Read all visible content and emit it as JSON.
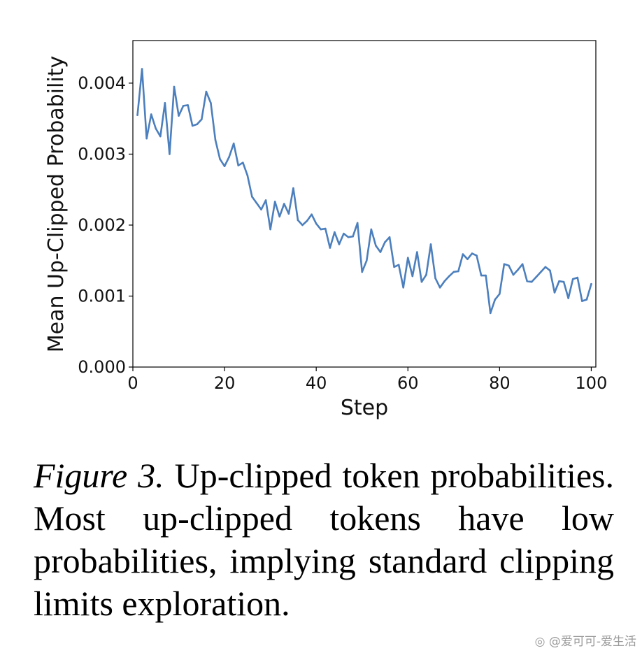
{
  "chart_data": {
    "type": "line",
    "title": "",
    "xlabel": "Step",
    "ylabel": "Mean Up-Clipped Probability",
    "xlim": [
      0,
      101
    ],
    "ylim": [
      0,
      0.0046
    ],
    "xticks": [
      0,
      20,
      40,
      60,
      80,
      100
    ],
    "xtick_labels": [
      "0",
      "20",
      "40",
      "60",
      "80",
      "100"
    ],
    "yticks": [
      0,
      0.001,
      0.002,
      0.003,
      0.004
    ],
    "ytick_labels": [
      "0.000",
      "0.001",
      "0.002",
      "0.003",
      "0.004"
    ],
    "grid": false,
    "line_color": "#4c7fbd",
    "series": [
      {
        "x": [
          1,
          2,
          3,
          4,
          5,
          6,
          7,
          8,
          9,
          10,
          11,
          12,
          13,
          14,
          15,
          16,
          17,
          18,
          19,
          20,
          21,
          22,
          23,
          24,
          25,
          26,
          27,
          28,
          29,
          30,
          31,
          32,
          33,
          34,
          35,
          36,
          37,
          38,
          39,
          40,
          41,
          42,
          43,
          44,
          45,
          46,
          47,
          48,
          49,
          50,
          51,
          52,
          53,
          54,
          55,
          56,
          57,
          58,
          59,
          60,
          61,
          62,
          63,
          64,
          65,
          66,
          67,
          68,
          69,
          70,
          71,
          72,
          73,
          74,
          75,
          76,
          77,
          78,
          79,
          80,
          81,
          82,
          83,
          84,
          85,
          86,
          87,
          88,
          89,
          90,
          91,
          92,
          93,
          94,
          95,
          96,
          97,
          98,
          99,
          100
        ],
        "values": [
          0.00355,
          0.0042,
          0.00322,
          0.00356,
          0.00336,
          0.00325,
          0.00372,
          0.003,
          0.00395,
          0.00354,
          0.00368,
          0.00369,
          0.0034,
          0.00342,
          0.00349,
          0.00388,
          0.00372,
          0.0032,
          0.00293,
          0.00283,
          0.00296,
          0.00315,
          0.00284,
          0.00288,
          0.0027,
          0.0024,
          0.00231,
          0.00222,
          0.00235,
          0.00194,
          0.00233,
          0.00212,
          0.0023,
          0.00216,
          0.00252,
          0.00207,
          0.002,
          0.00206,
          0.00215,
          0.00202,
          0.00194,
          0.00195,
          0.00168,
          0.0019,
          0.00173,
          0.00188,
          0.00183,
          0.00184,
          0.00203,
          0.00134,
          0.0015,
          0.00194,
          0.00171,
          0.00162,
          0.00176,
          0.00183,
          0.00141,
          0.00144,
          0.00112,
          0.00154,
          0.00128,
          0.00162,
          0.0012,
          0.0013,
          0.00173,
          0.00125,
          0.00112,
          0.00121,
          0.00128,
          0.00134,
          0.00135,
          0.00159,
          0.00152,
          0.0016,
          0.00157,
          0.00129,
          0.00129,
          0.00076,
          0.00095,
          0.00103,
          0.00145,
          0.00143,
          0.0013,
          0.00137,
          0.00145,
          0.00121,
          0.0012,
          0.00127,
          0.00134,
          0.00141,
          0.00136,
          0.00105,
          0.00121,
          0.0012,
          0.00097,
          0.00124,
          0.00126,
          0.00093,
          0.00095,
          0.00117
        ]
      }
    ]
  },
  "caption": {
    "label": "Figure 3.",
    "text": "Up-clipped token probabilities. Most up-clipped tokens have low probabilities, implying standard clipping limits exploration."
  },
  "watermark": "@爱可可-爱生活"
}
